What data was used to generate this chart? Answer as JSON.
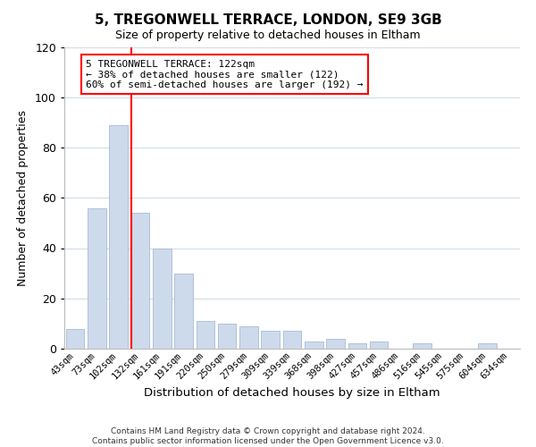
{
  "title": "5, TREGONWELL TERRACE, LONDON, SE9 3GB",
  "subtitle": "Size of property relative to detached houses in Eltham",
  "xlabel": "Distribution of detached houses by size in Eltham",
  "ylabel": "Number of detached properties",
  "categories": [
    "43sqm",
    "73sqm",
    "102sqm",
    "132sqm",
    "161sqm",
    "191sqm",
    "220sqm",
    "250sqm",
    "279sqm",
    "309sqm",
    "339sqm",
    "368sqm",
    "398sqm",
    "427sqm",
    "457sqm",
    "486sqm",
    "516sqm",
    "545sqm",
    "575sqm",
    "604sqm",
    "634sqm"
  ],
  "values": [
    8,
    56,
    89,
    54,
    40,
    30,
    11,
    10,
    9,
    7,
    7,
    3,
    4,
    2,
    3,
    0,
    2,
    0,
    0,
    2,
    0
  ],
  "bar_color": "#cddaeb",
  "bar_edge_color": "#a8bcd4",
  "ylim": [
    0,
    120
  ],
  "yticks": [
    0,
    20,
    40,
    60,
    80,
    100,
    120
  ],
  "red_line_index": 3,
  "annotation_text_line1": "5 TREGONWELL TERRACE: 122sqm",
  "annotation_text_line2": "← 38% of detached houses are smaller (122)",
  "annotation_text_line3": "60% of semi-detached houses are larger (192) →",
  "footer1": "Contains HM Land Registry data © Crown copyright and database right 2024.",
  "footer2": "Contains public sector information licensed under the Open Government Licence v3.0.",
  "background_color": "#ffffff",
  "grid_color": "#d0dce8"
}
